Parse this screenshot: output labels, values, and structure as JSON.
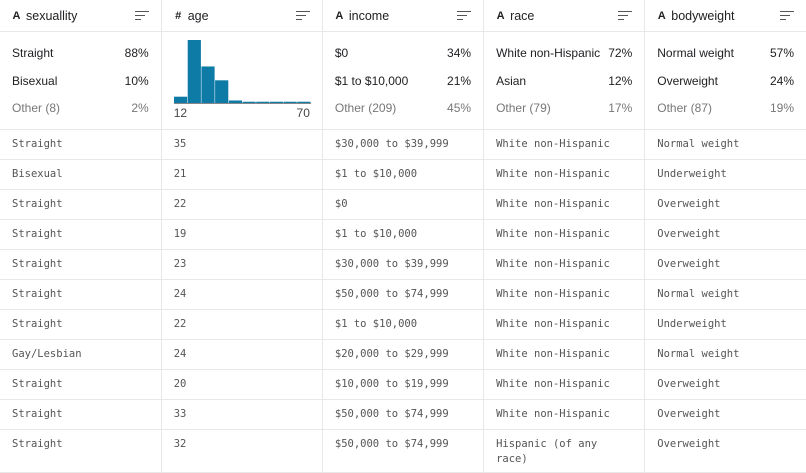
{
  "columns": [
    {
      "name": "sexuallity",
      "type_icon": "string-icon",
      "type_glyph": "A"
    },
    {
      "name": "age",
      "type_icon": "numeric-icon",
      "type_glyph": "#"
    },
    {
      "name": "income",
      "type_icon": "string-icon",
      "type_glyph": "A"
    },
    {
      "name": "race",
      "type_icon": "string-icon",
      "type_glyph": "A"
    },
    {
      "name": "bodyweight",
      "type_icon": "string-icon",
      "type_glyph": "A"
    }
  ],
  "summaries": {
    "sexuallity": [
      {
        "label": "Straight",
        "pct": "88%"
      },
      {
        "label": "Bisexual",
        "pct": "10%"
      },
      {
        "label": "Other (8)",
        "pct": "2%"
      }
    ],
    "age": {
      "min": "12",
      "max": "70",
      "histogram_relative": [
        0.1,
        1.0,
        0.58,
        0.36,
        0.04,
        0.02,
        0.02,
        0.02,
        0.02,
        0.02
      ],
      "bar_color": "#0e7aa6"
    },
    "income": [
      {
        "label": "$0",
        "pct": "34%"
      },
      {
        "label": "$1 to $10,000",
        "pct": "21%"
      },
      {
        "label": "Other (209)",
        "pct": "45%"
      }
    ],
    "race": [
      {
        "label": "White non-Hispanic",
        "pct": "72%"
      },
      {
        "label": "Asian",
        "pct": "12%"
      },
      {
        "label": "Other (79)",
        "pct": "17%"
      }
    ],
    "bodyweight": [
      {
        "label": "Normal weight",
        "pct": "57%"
      },
      {
        "label": "Overweight",
        "pct": "24%"
      },
      {
        "label": "Other (87)",
        "pct": "19%"
      }
    ]
  },
  "rows": [
    [
      "Straight",
      "35",
      "$30,000 to $39,999",
      "White non-Hispanic",
      "Normal weight"
    ],
    [
      "Bisexual",
      "21",
      "$1 to $10,000",
      "White non-Hispanic",
      "Underweight"
    ],
    [
      "Straight",
      "22",
      "$0",
      "White non-Hispanic",
      "Overweight"
    ],
    [
      "Straight",
      "19",
      "$1 to $10,000",
      "White non-Hispanic",
      "Overweight"
    ],
    [
      "Straight",
      "23",
      "$30,000 to $39,999",
      "White non-Hispanic",
      "Overweight"
    ],
    [
      "Straight",
      "24",
      "$50,000 to $74,999",
      "White non-Hispanic",
      "Normal weight"
    ],
    [
      "Straight",
      "22",
      "$1 to $10,000",
      "White non-Hispanic",
      "Underweight"
    ],
    [
      "Gay/Lesbian",
      "24",
      "$20,000 to $29,999",
      "White non-Hispanic",
      "Normal weight"
    ],
    [
      "Straight",
      "20",
      "$10,000 to $19,999",
      "White non-Hispanic",
      "Overweight"
    ],
    [
      "Straight",
      "33",
      "$50,000 to $74,999",
      "White non-Hispanic",
      "Overweight"
    ],
    [
      "Straight",
      "32",
      "$50,000 to $74,999",
      "Hispanic (of any race)",
      "Overweight"
    ]
  ]
}
